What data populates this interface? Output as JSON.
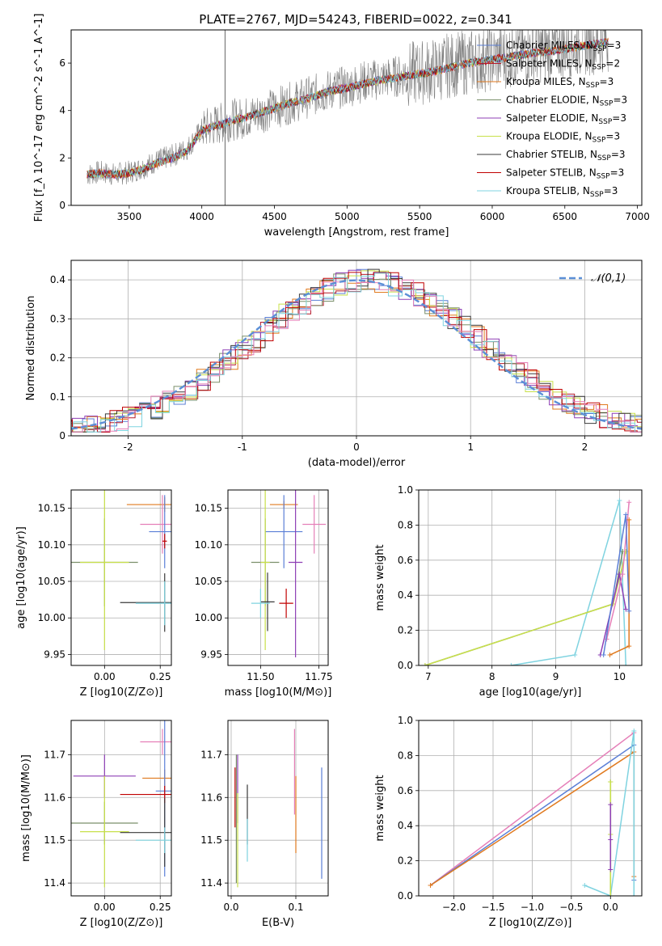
{
  "figure": {
    "title": "PLATE=2767, MJD=54243, FIBERID=0022, z=0.341"
  },
  "colors": {
    "Chabrier MILES": "#5b7fd6",
    "Salpeter MILES": "#b51c2c",
    "Kroupa MILES": "#e07a1f",
    "Chabrier ELODIE": "#7a8f6a",
    "Salpeter ELODIE": "#8e3fb5",
    "Kroupa ELODIE": "#c8e04a",
    "Chabrier STELIB": "#3a3a3a",
    "Salpeter STELIB": "#c00000",
    "Kroupa STELIB": "#7fd3e0",
    "pink": "#e57fb8",
    "data": "#808080"
  },
  "chart_data": [
    {
      "id": "spectrum",
      "type": "line",
      "title": "PLATE=2767, MJD=54243, FIBERID=0022, z=0.341",
      "xlabel": "wavelength [Angstrom, rest frame]",
      "ylabel": "Flux [f_λ 10^-17 erg cm^-2 s^-1 A^-1]",
      "xlim": [
        3100,
        7030
      ],
      "ylim": [
        0,
        7.4
      ],
      "xticks": [
        3500,
        4000,
        4500,
        5000,
        5500,
        6000,
        6500,
        7000
      ],
      "yticks": [
        0,
        2,
        4,
        6
      ],
      "legend_position": "top-right",
      "legend": [
        {
          "label": "Chabrier MILES",
          "ssp": "3",
          "color": "#5b7fd6"
        },
        {
          "label": "Salpeter MILES",
          "ssp": "2",
          "color": "#b51c2c"
        },
        {
          "label": "Kroupa MILES",
          "ssp": "3",
          "color": "#e07a1f"
        },
        {
          "label": "Chabrier ELODIE",
          "ssp": "3",
          "color": "#7a8f6a"
        },
        {
          "label": "Salpeter ELODIE",
          "ssp": "3",
          "color": "#8e3fb5"
        },
        {
          "label": "Kroupa ELODIE",
          "ssp": "3",
          "color": "#c8e04a"
        },
        {
          "label": "Chabrier STELIB",
          "ssp": "3",
          "color": "#3a3a3a"
        },
        {
          "label": "Salpeter STELIB",
          "ssp": "3",
          "color": "#c00000"
        },
        {
          "label": "Kroupa STELIB",
          "ssp": "3",
          "color": "#7fd3e0"
        }
      ],
      "data_curve": {
        "x": [
          3210,
          3300,
          3400,
          3500,
          3600,
          3700,
          3800,
          3900,
          4000,
          4100,
          4200,
          4300,
          4400,
          4500,
          4600,
          4700,
          4800,
          4900,
          5000,
          5100,
          5200,
          5300,
          5400,
          5500,
          5600,
          5700,
          5800,
          5900,
          6000,
          6100,
          6200,
          6300,
          6400,
          6500,
          6600,
          6700,
          6800
        ],
        "y": [
          1.3,
          1.4,
          1.3,
          1.4,
          1.6,
          1.9,
          2.1,
          2.4,
          3.2,
          3.4,
          3.6,
          3.7,
          3.9,
          4.1,
          4.3,
          4.5,
          4.7,
          4.9,
          5.0,
          5.2,
          5.3,
          5.4,
          5.5,
          5.6,
          5.7,
          5.9,
          6.0,
          6.1,
          6.2,
          6.3,
          6.4,
          6.5,
          6.6,
          6.7,
          6.8,
          6.9,
          7.0
        ]
      },
      "model_curve": {
        "x": [
          3210,
          3300,
          3400,
          3500,
          3600,
          3700,
          3800,
          3900,
          4000,
          4100,
          4200,
          4300,
          4400,
          4500,
          4600,
          4700,
          4800,
          4900,
          5000,
          5100,
          5200,
          5300,
          5400,
          5500,
          5600,
          5700,
          5800,
          5900,
          6000,
          6100,
          6200,
          6300,
          6400,
          6500,
          6600,
          6700,
          6800
        ],
        "y": [
          1.3,
          1.35,
          1.3,
          1.35,
          1.55,
          1.8,
          2.0,
          2.3,
          3.15,
          3.35,
          3.55,
          3.7,
          3.9,
          4.1,
          4.3,
          4.45,
          4.65,
          4.85,
          4.95,
          5.1,
          5.25,
          5.35,
          5.45,
          5.55,
          5.65,
          5.8,
          5.95,
          6.05,
          6.15,
          6.25,
          6.35,
          6.45,
          6.5,
          6.6,
          6.7,
          6.8,
          6.9
        ]
      }
    },
    {
      "id": "residuals",
      "type": "line",
      "xlabel": "(data-model)/error",
      "ylabel": "Normed distribution",
      "xlim": [
        -2.5,
        2.5
      ],
      "ylim": [
        0,
        0.45
      ],
      "xticks": [
        -2,
        -1,
        0,
        1,
        2
      ],
      "yticks": [
        0.0,
        0.1,
        0.2,
        0.3,
        0.4
      ],
      "legend": [
        {
          "label": "𝒩(0,1)",
          "color": "#5b8fd6"
        }
      ],
      "gaussian": {
        "mu": 0,
        "sigma": 1
      }
    },
    {
      "id": "age_vs_Z",
      "type": "scatter",
      "xlabel": "Z [log10(Z/Z⊙)]",
      "ylabel": "age  [log10(age/yr)]",
      "xlim": [
        -0.15,
        0.3
      ],
      "ylim": [
        9.935,
        10.175
      ],
      "xticks": [
        "0.00",
        "0.25"
      ],
      "yticks": [
        "9.95",
        "10.00",
        "10.05",
        "10.10",
        "10.15"
      ],
      "points": [
        {
          "color": "#e07a1f",
          "x": 0.27,
          "y": 10.155,
          "xerr": 0.17,
          "yerr": 0.01
        },
        {
          "color": "#e57fb8",
          "x": 0.26,
          "y": 10.128,
          "xerr": 0.1,
          "yerr": 0.04
        },
        {
          "color": "#5b7fd6",
          "x": 0.27,
          "y": 10.118,
          "xerr": 0.07,
          "yerr": 0.05
        },
        {
          "color": "#7a8f6a",
          "x": 0.0,
          "y": 10.076,
          "xerr": 0.15,
          "yerr": 0.06
        },
        {
          "color": "#c8e04a",
          "x": 0.0,
          "y": 10.076,
          "xerr": 0.11,
          "yerr": 0.12
        },
        {
          "color": "#3a3a3a",
          "x": 0.27,
          "y": 10.021,
          "xerr": 0.2,
          "yerr": 0.04
        },
        {
          "color": "#7fd3e0",
          "x": 0.27,
          "y": 10.02,
          "xerr": 0.13,
          "yerr": 0.03
        },
        {
          "color": "#c00000",
          "x": 0.27,
          "y": 10.105,
          "xerr": 0.01,
          "yerr": 0.01
        }
      ]
    },
    {
      "id": "age_vs_mass",
      "type": "scatter",
      "xlabel": "mass [log10(M/M⊙)]",
      "xlim": [
        11.36,
        11.79
      ],
      "ylim": [
        9.935,
        10.175
      ],
      "xticks": [
        "11.50",
        "11.75"
      ],
      "yticks": [
        "9.95",
        "10.00",
        "10.05",
        "10.10",
        "10.15"
      ],
      "points": [
        {
          "color": "#e07a1f",
          "x": 11.6,
          "y": 10.155,
          "xerr": 0.06,
          "yerr": 0.005
        },
        {
          "color": "#e57fb8",
          "x": 11.73,
          "y": 10.128,
          "xerr": 0.05,
          "yerr": 0.04
        },
        {
          "color": "#5b7fd6",
          "x": 11.6,
          "y": 10.118,
          "xerr": 0.08,
          "yerr": 0.05
        },
        {
          "color": "#7a8f6a",
          "x": 11.52,
          "y": 10.076,
          "xerr": 0.06,
          "yerr": 0.06
        },
        {
          "color": "#8e3fb5",
          "x": 11.65,
          "y": 10.076,
          "xerr": 0.03,
          "yerr": 0.13
        },
        {
          "color": "#c8e04a",
          "x": 11.52,
          "y": 10.076,
          "xerr": 0.02,
          "yerr": 0.12
        },
        {
          "color": "#c00000",
          "x": 11.61,
          "y": 10.02,
          "xerr": 0.03,
          "yerr": 0.02
        },
        {
          "color": "#3a3a3a",
          "x": 11.53,
          "y": 10.022,
          "xerr": 0.03,
          "yerr": 0.04
        },
        {
          "color": "#7fd3e0",
          "x": 11.5,
          "y": 10.02,
          "xerr": 0.04,
          "yerr": 0.02
        }
      ]
    },
    {
      "id": "weight_vs_age",
      "type": "line",
      "xlabel": "age  [log10(age/yr)]",
      "ylabel": "mass weight",
      "xlim": [
        6.85,
        10.35
      ],
      "ylim": [
        0,
        1
      ],
      "xticks": [
        7,
        8,
        9,
        10
      ],
      "yticks": [
        "0.0",
        "0.2",
        "0.4",
        "0.6",
        "0.8",
        "1.0"
      ],
      "series": [
        {
          "color": "#7fd3e0",
          "x": [
            8.3,
            9.3,
            10.0,
            10.1
          ],
          "y": [
            0.0,
            0.06,
            0.94,
            0.0
          ]
        },
        {
          "color": "#7a8f6a",
          "x": [
            6.95,
            9.9,
            10.05
          ],
          "y": [
            0.0,
            0.35,
            0.65
          ]
        },
        {
          "color": "#c8e04a",
          "x": [
            6.95,
            9.9,
            10.1
          ],
          "y": [
            0.0,
            0.35,
            0.65
          ]
        },
        {
          "color": "#8e3fb5",
          "x": [
            9.7,
            10.0,
            10.1
          ],
          "y": [
            0.06,
            0.52,
            0.32
          ]
        },
        {
          "color": "#e57fb8",
          "x": [
            9.8,
            10.05,
            10.15
          ],
          "y": [
            0.15,
            0.52,
            0.93
          ]
        },
        {
          "color": "#e07a1f",
          "x": [
            9.85,
            10.15,
            10.15
          ],
          "y": [
            0.06,
            0.11,
            0.83
          ]
        },
        {
          "color": "#5b7fd6",
          "x": [
            9.75,
            10.1,
            10.15
          ],
          "y": [
            0.06,
            0.86,
            0.31
          ]
        }
      ]
    },
    {
      "id": "mass_vs_Z",
      "type": "scatter",
      "xlabel": "Z [log10(Z/Z⊙)]",
      "ylabel": "mass [log10(M/M⊙)]",
      "xlim": [
        -0.15,
        0.3
      ],
      "ylim": [
        11.37,
        11.78
      ],
      "xticks": [
        "0.00",
        "0.25"
      ],
      "yticks": [
        "11.4",
        "11.5",
        "11.6",
        "11.7"
      ],
      "points": [
        {
          "color": "#e57fb8",
          "x": 0.26,
          "y": 11.73,
          "xerr": 0.1,
          "yerr": 0.03
        },
        {
          "color": "#8e3fb5",
          "x": 0.0,
          "y": 11.65,
          "xerr": 0.14,
          "yerr": 0.05
        },
        {
          "color": "#e07a1f",
          "x": 0.27,
          "y": 11.645,
          "xerr": 0.1,
          "yerr": 0.02
        },
        {
          "color": "#5b7fd6",
          "x": 0.27,
          "y": 11.615,
          "xerr": 0.04,
          "yerr": 0.2
        },
        {
          "color": "#c00000",
          "x": 0.27,
          "y": 11.607,
          "xerr": 0.2,
          "yerr": 0.02
        },
        {
          "color": "#7a8f6a",
          "x": 0.0,
          "y": 11.54,
          "xerr": 0.15,
          "yerr": 0.05
        },
        {
          "color": "#c8e04a",
          "x": 0.0,
          "y": 11.52,
          "xerr": 0.11,
          "yerr": 0.13
        },
        {
          "color": "#3a3a3a",
          "x": 0.27,
          "y": 11.518,
          "xerr": 0.2,
          "yerr": 0.08
        },
        {
          "color": "#7fd3e0",
          "x": 0.27,
          "y": 11.5,
          "xerr": 0.13,
          "yerr": 0.03
        }
      ]
    },
    {
      "id": "mass_vs_ebv",
      "type": "scatter",
      "xlabel": "E(B-V)",
      "xlim": [
        -0.005,
        0.15
      ],
      "ylim": [
        11.37,
        11.78
      ],
      "xticks": [
        "0.0",
        "0.1"
      ],
      "yticks": [
        "11.4",
        "11.5",
        "11.6",
        "11.7"
      ],
      "points": [
        {
          "color": "#e57fb8",
          "x": 0.098,
          "y": 11.66,
          "xerr": 0.0,
          "yerr": 0.1
        },
        {
          "color": "#8e3fb5",
          "x": 0.01,
          "y": 11.62,
          "xerr": 0.0,
          "yerr": 0.08
        },
        {
          "color": "#e07a1f",
          "x": 0.1,
          "y": 11.56,
          "xerr": 0.0,
          "yerr": 0.09
        },
        {
          "color": "#5b7fd6",
          "x": 0.14,
          "y": 11.54,
          "xerr": 0.0,
          "yerr": 0.13
        },
        {
          "color": "#c00000",
          "x": 0.006,
          "y": 11.6,
          "xerr": 0.0,
          "yerr": 0.07
        },
        {
          "color": "#7a8f6a",
          "x": 0.008,
          "y": 11.55,
          "xerr": 0.0,
          "yerr": 0.15
        },
        {
          "color": "#c8e04a",
          "x": 0.01,
          "y": 11.5,
          "xerr": 0.0,
          "yerr": 0.11
        },
        {
          "color": "#3a3a3a",
          "x": 0.025,
          "y": 11.56,
          "xerr": 0.0,
          "yerr": 0.07
        },
        {
          "color": "#7fd3e0",
          "x": 0.025,
          "y": 11.5,
          "xerr": 0.0,
          "yerr": 0.05
        }
      ]
    },
    {
      "id": "weight_vs_Z",
      "type": "line",
      "xlabel": "Z [log10(Z/Z⊙)]",
      "ylabel": "mass weight",
      "xlim": [
        -2.45,
        0.4
      ],
      "ylim": [
        0,
        1
      ],
      "xticks": [
        "−2.0",
        "−1.5",
        "−1.0",
        "−0.5",
        "0.0"
      ],
      "xtick_values": [
        -2.0,
        -1.5,
        -1.0,
        -0.5,
        0.0
      ],
      "yticks": [
        "0.0",
        "0.2",
        "0.4",
        "0.6",
        "0.8",
        "1.0"
      ],
      "series": [
        {
          "color": "#e57fb8",
          "x": [
            -2.3,
            0.3
          ],
          "y": [
            0.06,
            0.93
          ]
        },
        {
          "color": "#5b7fd6",
          "x": [
            -2.3,
            0.3,
            0.3
          ],
          "y": [
            0.06,
            0.86,
            0.09
          ]
        },
        {
          "color": "#e07a1f",
          "x": [
            -2.3,
            0.3,
            0.3
          ],
          "y": [
            0.06,
            0.82,
            0.11
          ]
        },
        {
          "color": "#7fd3e0",
          "x": [
            -0.33,
            0.0,
            0.3,
            0.3
          ],
          "y": [
            0.06,
            0.0,
            0.94,
            0.0
          ]
        },
        {
          "color": "#7a8f6a",
          "x": [
            0.0,
            0.0,
            0.0
          ],
          "y": [
            0.0,
            0.35,
            0.65
          ]
        },
        {
          "color": "#c8e04a",
          "x": [
            0.0,
            0.0,
            0.0
          ],
          "y": [
            0.0,
            0.35,
            0.65
          ]
        },
        {
          "color": "#8e3fb5",
          "x": [
            0.0,
            0.0,
            0.0
          ],
          "y": [
            0.15,
            0.52,
            0.32
          ]
        }
      ]
    }
  ]
}
